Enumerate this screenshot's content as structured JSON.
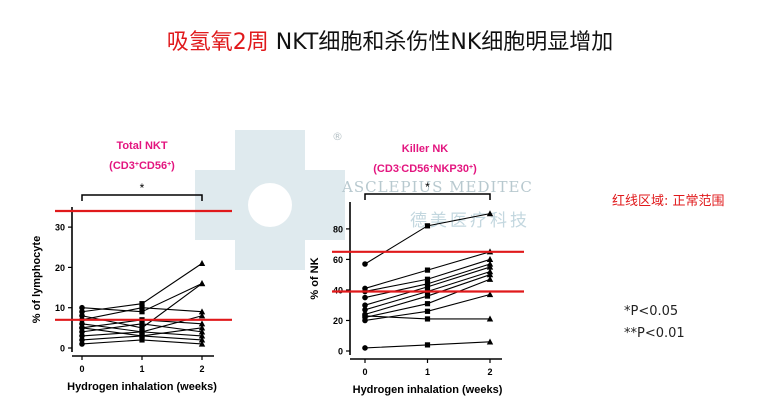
{
  "slide": {
    "title_red": "吸氢氧2周",
    "title_rest": " NKT细胞和杀伤性NK细胞明显增加",
    "watermark_reg": "®",
    "watermark_en": "ASCLEPIUS   MEDITEC",
    "watermark_cn": "德美医疗科技",
    "red_line_note": "红线区域: 正常范围",
    "sig1": "*P<0.05",
    "sig2": "**P<0.01"
  },
  "colors": {
    "accent": "#e0191b",
    "magenta": "#e3157f",
    "watermark": "#8fb6c4"
  },
  "chart_data": [
    {
      "type": "line",
      "title_line1": "Total NKT",
      "title_base": "(CD3",
      "title_sup1": "+",
      "title_mid": "CD56",
      "title_sup2": "+",
      "title_end": ")",
      "significance": "*",
      "xlabel": "Hydrogen inhalation (weeks)",
      "ylabel": "% of lymphocyte",
      "x": [
        0,
        1,
        2
      ],
      "xticks": [
        "0",
        "1",
        "2"
      ],
      "ylim": [
        0,
        34
      ],
      "yticks": [
        "0",
        "10",
        "20",
        "30"
      ],
      "normal_range": [
        7,
        34
      ],
      "series": [
        {
          "values": [
            10,
            9,
            16
          ]
        },
        {
          "values": [
            9,
            11,
            21
          ]
        },
        {
          "values": [
            8,
            5,
            16
          ]
        },
        {
          "values": [
            7,
            10,
            9
          ]
        },
        {
          "values": [
            6,
            4,
            8
          ]
        },
        {
          "values": [
            5,
            7,
            6
          ]
        },
        {
          "values": [
            5,
            3,
            5
          ]
        },
        {
          "values": [
            4,
            6,
            4
          ]
        },
        {
          "values": [
            3,
            4,
            3
          ]
        },
        {
          "values": [
            2,
            3,
            2
          ]
        },
        {
          "values": [
            1,
            2,
            1
          ]
        }
      ]
    },
    {
      "type": "line",
      "title_line1": "Killer NK",
      "title_base": "(CD3",
      "title_sup1": "-",
      "title_mid": "CD56",
      "title_sup2": "+",
      "title_mid2": "NKP30",
      "title_sup3": "+",
      "title_end": ")",
      "significance": "*",
      "xlabel": "Hydrogen inhalation (weeks)",
      "ylabel": "% of NK",
      "x": [
        0,
        1,
        2
      ],
      "xticks": [
        "0",
        "1",
        "2"
      ],
      "ylim": [
        0,
        95
      ],
      "yticks": [
        "0",
        "20",
        "40",
        "60",
        "80"
      ],
      "normal_range": [
        39,
        65
      ],
      "series": [
        {
          "values": [
            57,
            82,
            90
          ]
        },
        {
          "values": [
            41,
            53,
            65
          ]
        },
        {
          "values": [
            39,
            47,
            60
          ]
        },
        {
          "values": [
            35,
            44,
            57
          ]
        },
        {
          "values": [
            30,
            42,
            55
          ]
        },
        {
          "values": [
            27,
            39,
            52
          ]
        },
        {
          "values": [
            24,
            36,
            50
          ]
        },
        {
          "values": [
            22,
            31,
            47
          ]
        },
        {
          "values": [
            20,
            26,
            37
          ]
        },
        {
          "values": [
            23,
            21,
            21
          ]
        },
        {
          "values": [
            2,
            4,
            6
          ]
        }
      ]
    }
  ]
}
